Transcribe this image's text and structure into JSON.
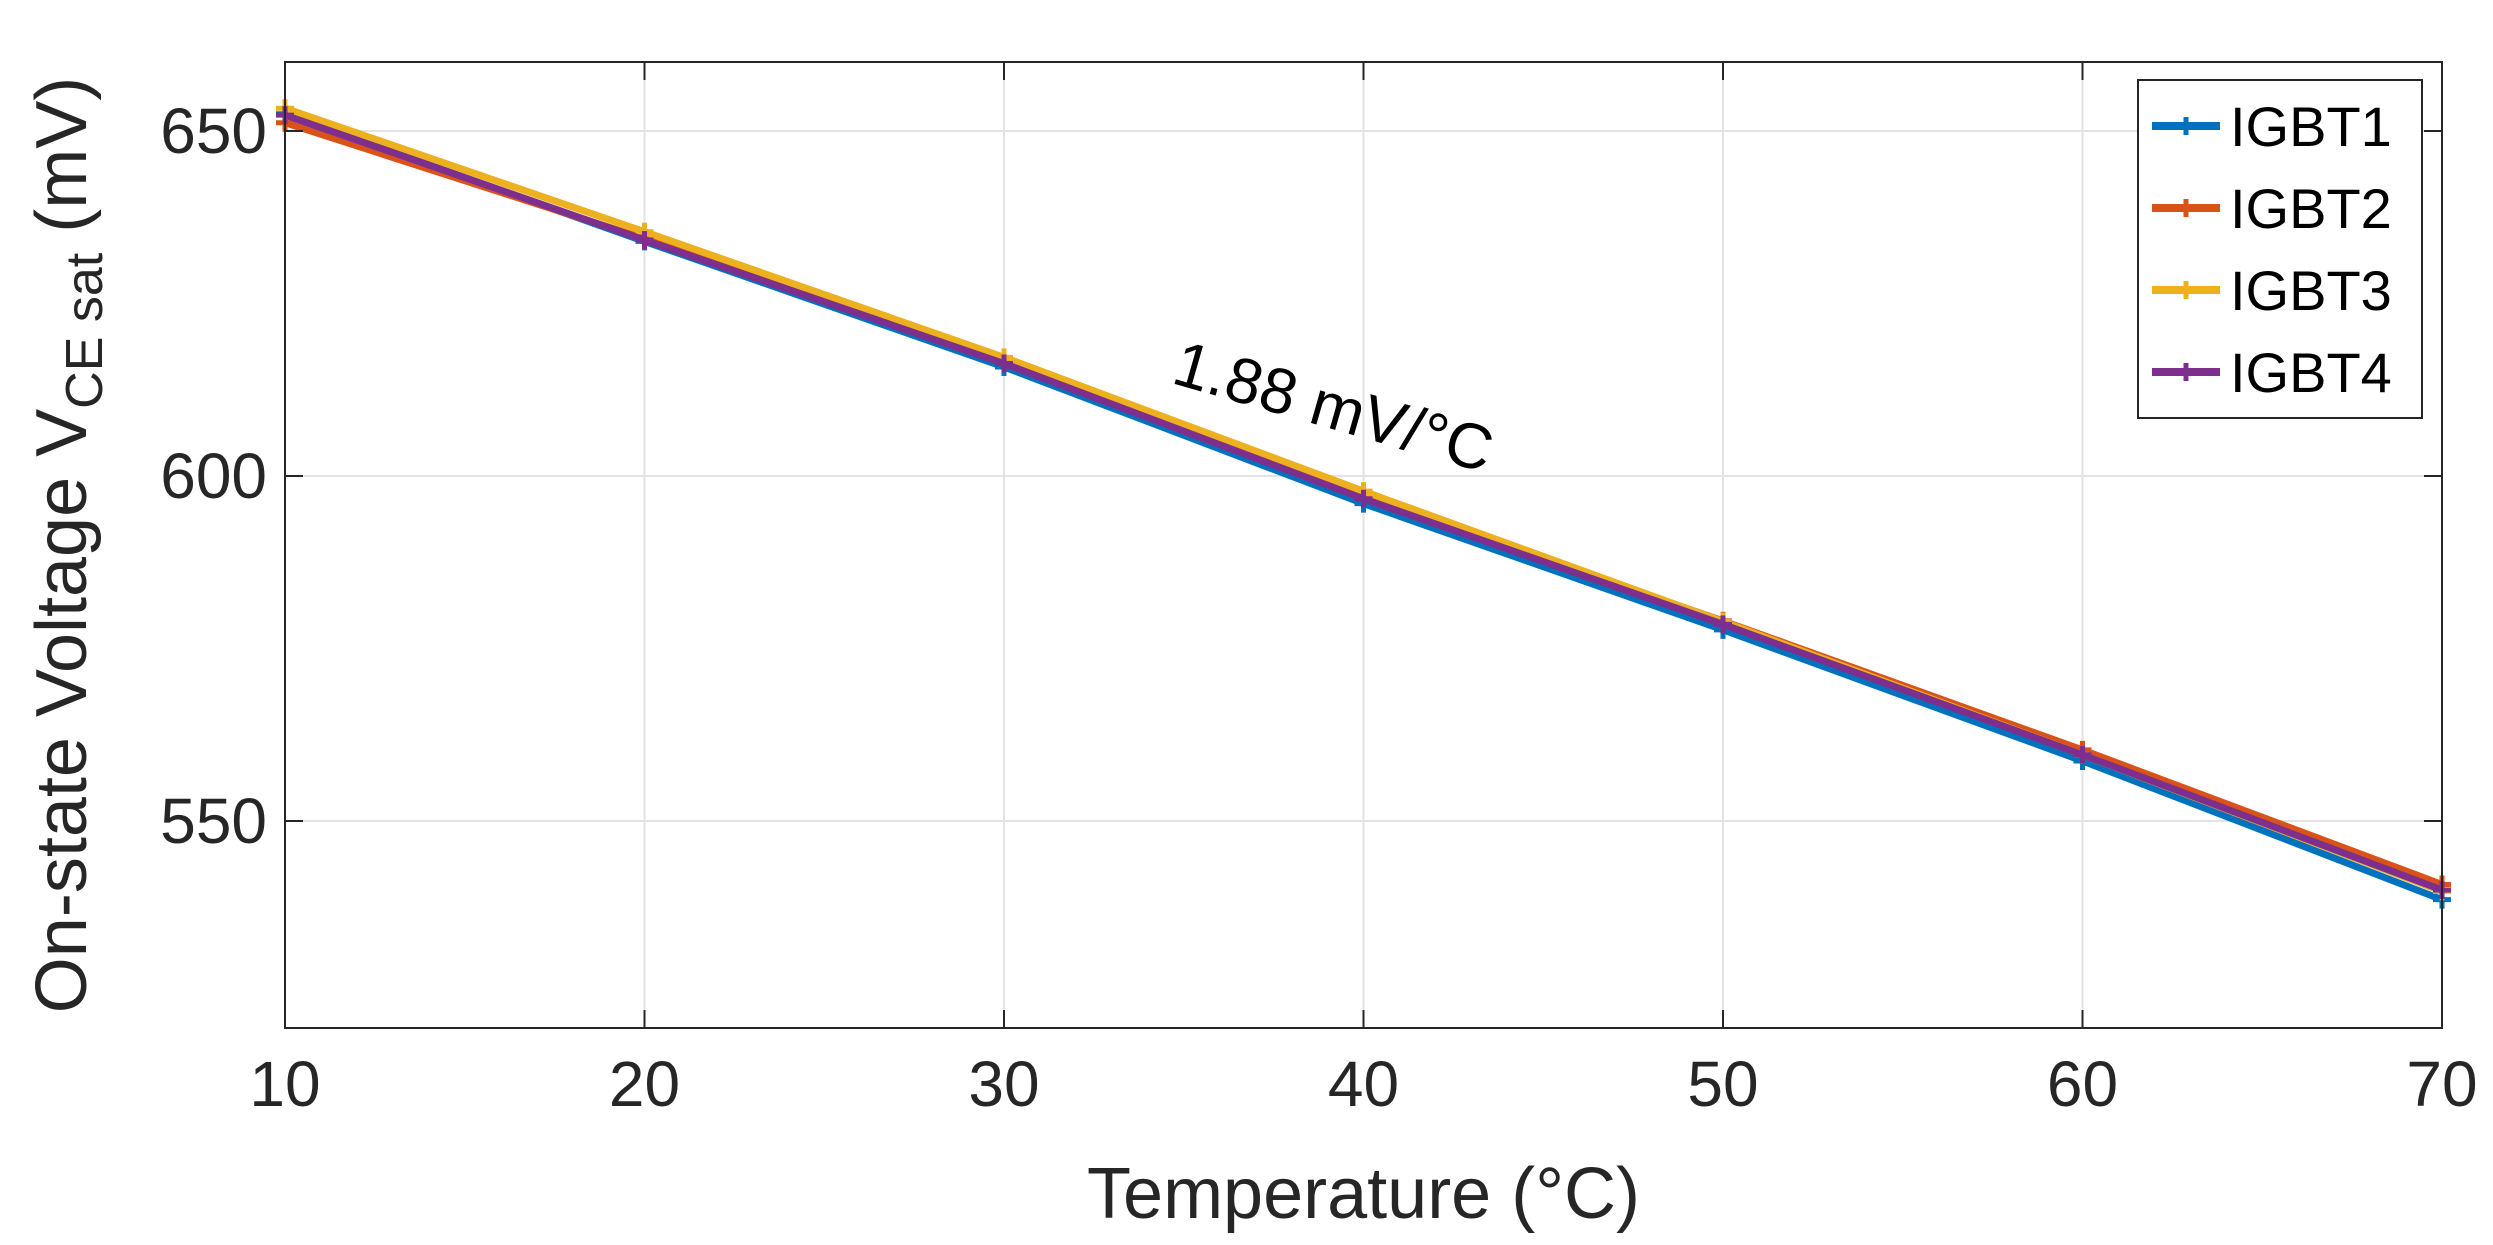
{
  "chart_data": {
    "type": "line",
    "xlabel": "Temperature (°C)",
    "ylabel": {
      "prefix": "On-state Voltage V",
      "subscript": "CE sat",
      "suffix": " (mV)"
    },
    "x": [
      10,
      20,
      30,
      40,
      50,
      60,
      70
    ],
    "xlim": [
      10,
      70
    ],
    "ylim": [
      520,
      660
    ],
    "xticks": [
      10,
      20,
      30,
      40,
      50,
      60,
      70
    ],
    "yticks": [
      550,
      600,
      650
    ],
    "grid": true,
    "legend_position": "top-right",
    "annotation": {
      "text": "1.88 mV/°C",
      "x": 39,
      "y": 607
    },
    "series": [
      {
        "name": "IGBT1",
        "color": "#0072BD",
        "values": [
          652.5,
          634.0,
          615.8,
          596.0,
          577.7,
          558.7,
          538.6
        ]
      },
      {
        "name": "IGBT2",
        "color": "#D95319",
        "values": [
          651.2,
          634.4,
          616.4,
          597.0,
          579.0,
          560.3,
          540.8
        ]
      },
      {
        "name": "IGBT3",
        "color": "#EDB120",
        "values": [
          653.3,
          635.4,
          617.2,
          597.8,
          578.9,
          559.6,
          539.8
        ]
      },
      {
        "name": "IGBT4",
        "color": "#7E2F8E",
        "values": [
          652.3,
          634.2,
          616.3,
          596.7,
          578.5,
          559.6,
          540.0
        ]
      }
    ]
  }
}
